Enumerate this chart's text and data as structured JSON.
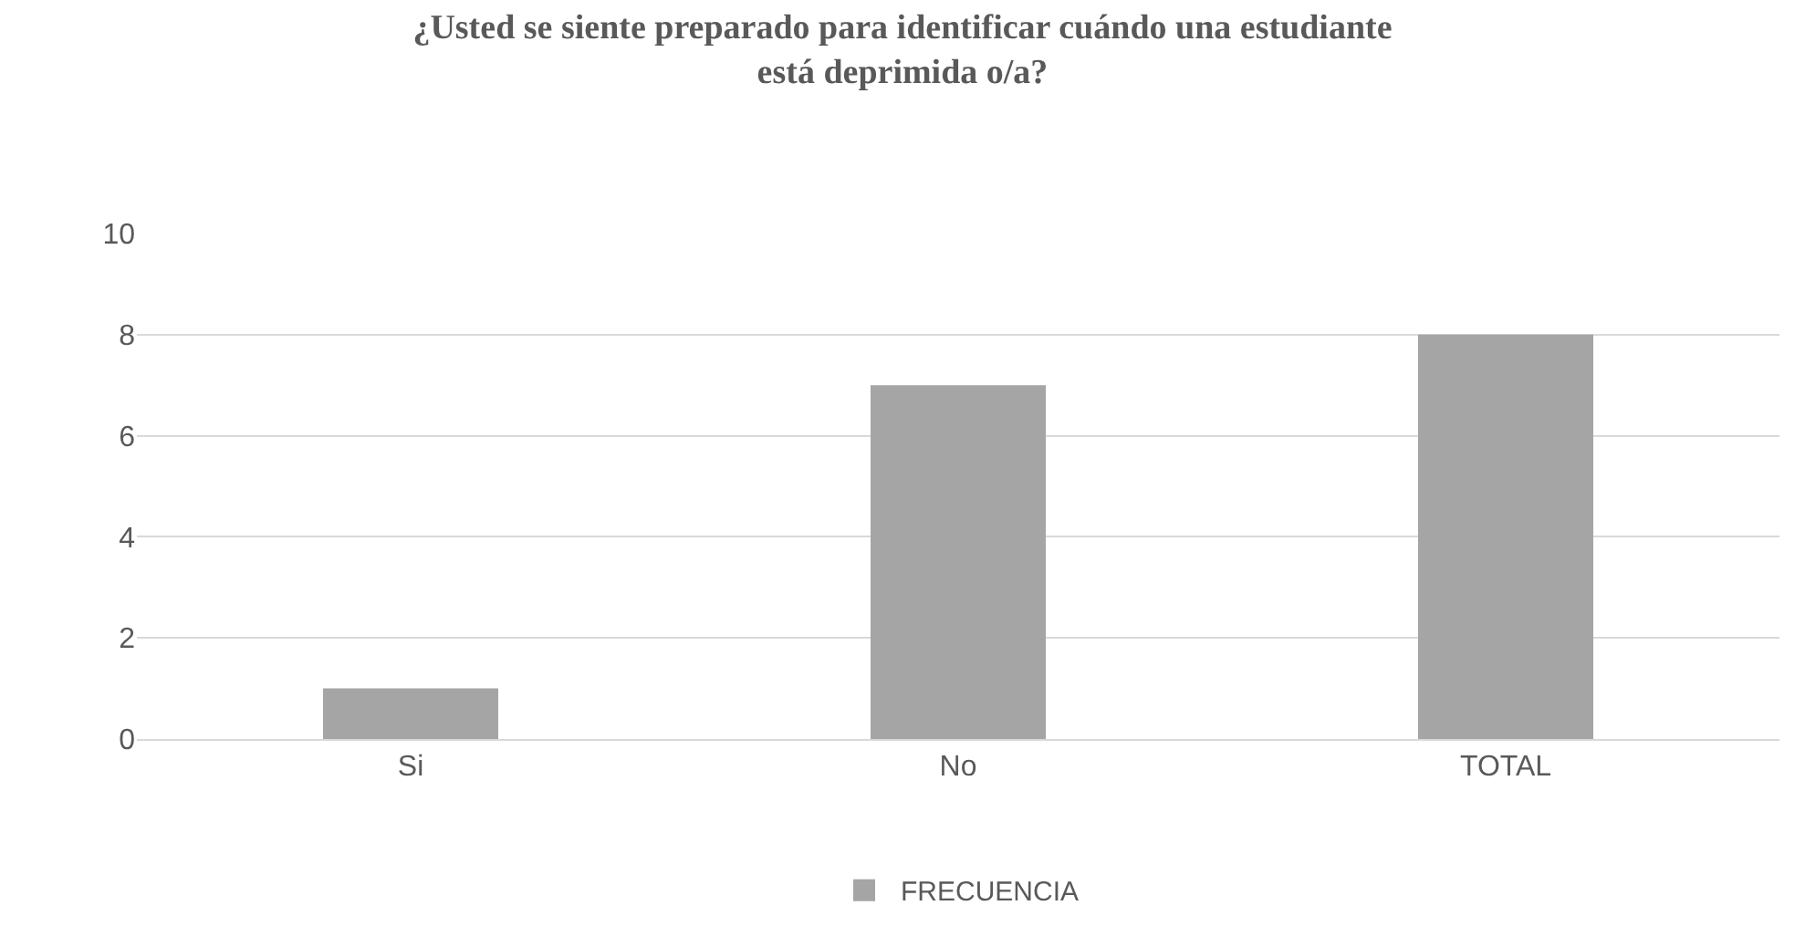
{
  "chart_data": {
    "type": "bar",
    "title": "¿Usted se siente preparado para identificar cuándo una estudiante\nestá deprimida o/a?",
    "categories": [
      "Si",
      "No",
      "TOTAL"
    ],
    "series": [
      {
        "name": "FRECUENCIA",
        "color": "#a5a5a5",
        "values": [
          1,
          7,
          8
        ]
      }
    ],
    "ylim": [
      0,
      10
    ],
    "yticks": [
      0,
      2,
      4,
      6,
      8,
      10
    ],
    "grid": "y",
    "legend": "bottom"
  }
}
